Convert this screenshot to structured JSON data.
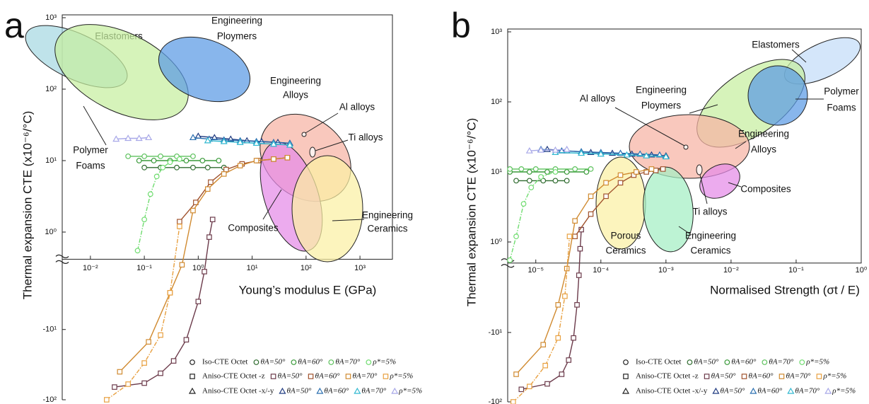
{
  "chart_data": [
    {
      "type": "line",
      "panel": "a",
      "xlabel": "Young’s modulus E (GPa)",
      "ylabel": "Thermal expansion CTE (x10⁻⁶/°C)",
      "log_x": true,
      "log_y": true,
      "xlim": [
        0.003,
        4000
      ],
      "xticks": [
        {
          "value": 0.01,
          "label": "10⁻²"
        },
        {
          "value": 0.1,
          "label": "10⁻¹"
        },
        {
          "value": 1,
          "label": "10⁰"
        },
        {
          "value": 10,
          "label": "10¹"
        },
        {
          "value": 100,
          "label": "10²"
        },
        {
          "value": 1000,
          "label": "10³"
        }
      ],
      "ylim": [
        -100,
        1000
      ],
      "y_break": [
        0.5,
        -1
      ],
      "yticks": [
        {
          "value": 1000,
          "label": "10³"
        },
        {
          "value": 100,
          "label": "10²"
        },
        {
          "value": 10,
          "label": "10¹"
        },
        {
          "value": 1,
          "label": "10⁰"
        },
        {
          "value": -10,
          "label": "-10¹"
        },
        {
          "value": -100,
          "label": "-10²"
        }
      ],
      "regions": [
        {
          "label": [
            "Elastomers"
          ]
        },
        {
          "label": [
            "Polymer",
            "Foams"
          ]
        },
        {
          "label": [
            "Engineering",
            "Ploymers"
          ]
        },
        {
          "label": [
            "Engineering",
            "Alloys"
          ]
        },
        {
          "label": [
            "Composites"
          ]
        },
        {
          "label": [
            "Engineering",
            "Ceramics"
          ]
        },
        {
          "label": [
            "Al alloys"
          ]
        },
        {
          "label": [
            "Ti alloys"
          ]
        }
      ],
      "groups": [
        {
          "name": "Iso-CTE Octet",
          "marker": "circle",
          "series": [
            {
              "name": "θA=50°",
              "color": "#2f6b2f",
              "x": [
                0.1,
                0.2,
                0.4,
                0.8,
                1.5,
                3
              ],
              "values": [
                8,
                8,
                8,
                8,
                8,
                8
              ]
            },
            {
              "name": "θA=60°",
              "color": "#3a9a3a",
              "x": [
                0.08,
                0.15,
                0.3,
                0.6,
                1.2,
                2.4
              ],
              "values": [
                10,
                10,
                10,
                10,
                10,
                10
              ]
            },
            {
              "name": "θA=70°",
              "color": "#5ec25e",
              "x": [
                0.05,
                0.1,
                0.2,
                0.4,
                0.8
              ],
              "values": [
                11.5,
                11.5,
                11.5,
                11.5,
                11.5
              ]
            },
            {
              "name": "ρ*=5%",
              "color": "#6fdc6f",
              "dashed": true,
              "x": [
                0.075,
                0.1,
                0.13,
                0.17,
                0.22,
                0.3,
                0.45
              ],
              "values": [
                0.55,
                1.5,
                3.4,
                6,
                8,
                9.5,
                10.5
              ]
            }
          ]
        },
        {
          "name": "Aniso-CTE Octet -z",
          "marker": "square",
          "series": [
            {
              "name": "θA=50°",
              "color": "#6b3a4a",
              "x": [
                0.028,
                0.1,
                0.2,
                0.35,
                0.6,
                1.0,
                1.3,
                1.6,
                1.85
              ],
              "values": [
                -66,
                -58,
                -42,
                -28,
                -14,
                -4,
                -1.5,
                0.85,
                1.5
              ]
            },
            {
              "name": "θA=60°",
              "color": "#a0522d",
              "x": [
                0.45,
                0.9,
                1.7,
                3.3,
                6.5,
                13,
                25,
                45
              ],
              "values": [
                1.4,
                2.6,
                5,
                7.5,
                9,
                10,
                10.5,
                11
              ]
            },
            {
              "name": "θA=70°",
              "color": "#d08a30",
              "x": [
                0.035,
                0.12,
                0.3,
                0.5,
                0.8,
                1.5,
                3,
                6,
                12,
                25,
                45
              ],
              "values": [
                -40,
                -15,
                -3,
                -1.2,
                2,
                4,
                6.5,
                8.5,
                10,
                10.5,
                11
              ]
            },
            {
              "name": "ρ*=5%",
              "color": "#e8a040",
              "dashed": true,
              "x": [
                0.02,
                0.05,
                0.1,
                0.2,
                0.3,
                0.45
              ],
              "values": [
                -100,
                -60,
                -30,
                -12,
                -3,
                1.2
              ]
            }
          ]
        },
        {
          "name": "Aniso-CTE Octet -x/-y",
          "marker": "triangle",
          "series": [
            {
              "name": "θA=50°",
              "color": "#1f3a80",
              "x": [
                1,
                2,
                4,
                8,
                15,
                30,
                50
              ],
              "values": [
                22,
                21,
                20,
                19,
                18.5,
                18,
                17.5
              ]
            },
            {
              "name": "θA=60°",
              "color": "#2a6fb0",
              "x": [
                0.8,
                1.6,
                3,
                6,
                12,
                25,
                50
              ],
              "values": [
                21,
                20,
                19.5,
                19,
                18.5,
                18,
                17.5
              ]
            },
            {
              "name": "θA=70°",
              "color": "#30b8d0",
              "x": [
                1.5,
                3,
                6,
                12,
                25,
                50
              ],
              "values": [
                19,
                18.5,
                18,
                17.5,
                17,
                16.5
              ]
            },
            {
              "name": "ρ*=5%",
              "color": "#a8a8e8",
              "x": [
                0.03,
                0.05,
                0.08,
                0.12
              ],
              "values": [
                20,
                20.5,
                20.5,
                21
              ]
            }
          ]
        }
      ]
    },
    {
      "type": "line",
      "panel": "b",
      "xlabel": "Normalised Strength (σt / E)",
      "ylabel": "Thermal expansion CTE (x10⁻⁶/°C)",
      "log_x": true,
      "log_y": true,
      "xlim": [
        3.7e-06,
        1
      ],
      "xticks": [
        {
          "value": 1e-05,
          "label": "10⁻⁵"
        },
        {
          "value": 0.0001,
          "label": "10⁻⁴"
        },
        {
          "value": 0.001,
          "label": "10⁻³"
        },
        {
          "value": 0.01,
          "label": "10⁻²"
        },
        {
          "value": 0.1,
          "label": "10⁻¹"
        },
        {
          "value": 1,
          "label": "10⁰"
        }
      ],
      "ylim": [
        -100,
        1000
      ],
      "y_break": [
        0.5,
        -1
      ],
      "yticks": [
        {
          "value": 1000,
          "label": "10³"
        },
        {
          "value": 100,
          "label": "10²"
        },
        {
          "value": 10,
          "label": "10¹"
        },
        {
          "value": 1,
          "label": "10⁰"
        },
        {
          "value": -10,
          "label": "-10¹"
        },
        {
          "value": -100,
          "label": "-10²"
        }
      ],
      "regions": [
        {
          "label": [
            "Elastomers"
          ]
        },
        {
          "label": [
            "Engineering",
            "Ploymers"
          ]
        },
        {
          "label": [
            "Polymer",
            "Foams"
          ]
        },
        {
          "label": [
            "Engineering",
            "Alloys"
          ]
        },
        {
          "label": [
            "Porous",
            "Ceramics"
          ]
        },
        {
          "label": [
            "Engineering",
            "Ceramics"
          ]
        },
        {
          "label": [
            "Composites"
          ]
        },
        {
          "label": [
            "Al alloys"
          ]
        },
        {
          "label": [
            "Ti alloys"
          ]
        }
      ],
      "groups": [
        {
          "name": "Iso-CTE Octet",
          "marker": "circle",
          "series": [
            {
              "name": "θA=50°",
              "color": "#2f6b2f",
              "x": [
                5e-06,
                8e-06,
                1.3e-05,
                2e-05,
                3e-05
              ],
              "values": [
                7.5,
                7.5,
                7.5,
                7.5,
                7.5
              ]
            },
            {
              "name": "θA=60°",
              "color": "#3a9a3a",
              "x": [
                4e-06,
                8e-06,
                1.5e-05,
                3e-05,
                6e-05
              ],
              "values": [
                10,
                10,
                10,
                10,
                10
              ]
            },
            {
              "name": "θA=70°",
              "color": "#5ec25e",
              "x": [
                4e-06,
                6e-06,
                1e-05,
                2e-05,
                4e-05,
                7e-05
              ],
              "values": [
                11,
                11,
                11,
                11,
                11,
                11
              ]
            },
            {
              "name": "ρ*=5%",
              "color": "#6fdc6f",
              "dashed": true,
              "x": [
                4e-06,
                5e-06,
                6.5e-06,
                8.5e-06,
                1.2e-05,
                2e-05
              ],
              "values": [
                0.55,
                1.2,
                3.5,
                6,
                8.5,
                10
              ]
            }
          ]
        },
        {
          "name": "Aniso-CTE Octet -z",
          "marker": "square",
          "series": [
            {
              "name": "θA=50°",
              "color": "#6b3a4a",
              "x": [
                6e-06,
                1.5e-05,
                2.5e-05,
                3.2e-05,
                3.8e-05,
                4.3e-05,
                4.6e-05,
                4.8e-05,
                5e-05
              ],
              "values": [
                -66,
                -55,
                -40,
                -25,
                -12,
                -4,
                -1.5,
                0.8,
                1.5
              ]
            },
            {
              "name": "θA=60°",
              "color": "#a0522d",
              "x": [
                4e-05,
                7e-05,
                0.00012,
                0.0002,
                0.00032,
                0.0005,
                0.0007,
                0.0009
              ],
              "values": [
                1.2,
                2.5,
                4.5,
                7,
                9,
                10,
                10.5,
                11
              ]
            },
            {
              "name": "θA=70°",
              "color": "#d08a30",
              "x": [
                5e-06,
                1.3e-05,
                2.2e-05,
                3e-05,
                4e-05,
                7e-05,
                0.00012,
                0.0002,
                0.00035,
                0.0006
              ],
              "values": [
                -40,
                -15,
                -4,
                -1.2,
                2,
                4.5,
                7,
                9,
                10,
                11
              ]
            },
            {
              "name": "ρ*=5%",
              "color": "#e8a040",
              "dashed": true,
              "x": [
                4.5e-06,
                8e-06,
                1.4e-05,
                2.2e-05,
                2.8e-05,
                3.3e-05
              ],
              "values": [
                -100,
                -60,
                -30,
                -12,
                -3,
                1.2
              ]
            }
          ]
        },
        {
          "name": "Aniso-CTE Octet -x/-y",
          "marker": "triangle",
          "series": [
            {
              "name": "θA=50°",
              "color": "#1f3a80",
              "x": [
                1.5e-05,
                3e-05,
                7e-05,
                0.00015,
                0.0003,
                0.0006,
                0.001
              ],
              "values": [
                21,
                20,
                19,
                18.5,
                18,
                17.5,
                17
              ]
            },
            {
              "name": "θA=60°",
              "color": "#2a6fb0",
              "x": [
                1.2e-05,
                2.5e-05,
                5e-05,
                0.0001,
                0.0002,
                0.0004,
                0.0008
              ],
              "values": [
                21,
                20,
                19.5,
                19,
                18.5,
                18,
                17.5
              ]
            },
            {
              "name": "θA=70°",
              "color": "#30b8d0",
              "x": [
                2e-05,
                5e-05,
                0.0001,
                0.00025,
                0.0005,
                0.001
              ],
              "values": [
                19,
                18.5,
                18,
                17.5,
                17,
                16.5
              ]
            },
            {
              "name": "ρ*=5%",
              "color": "#a8a8e8",
              "x": [
                8e-06,
                1.2e-05,
                2e-05,
                3e-05
              ],
              "values": [
                20,
                20.5,
                20.5,
                21
              ]
            }
          ]
        }
      ]
    }
  ]
}
